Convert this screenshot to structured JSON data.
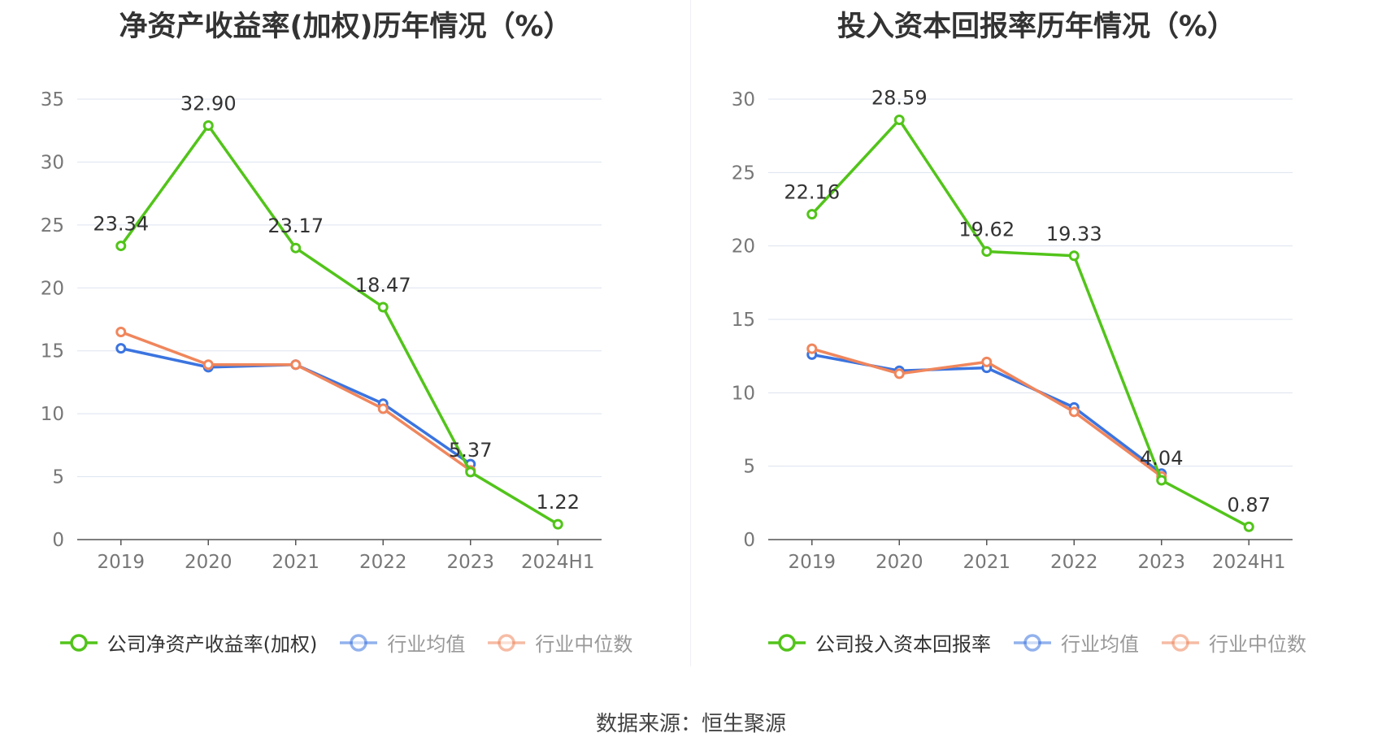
{
  "source_text": "数据来源：恒生聚源",
  "colors": {
    "company": "#52c41a",
    "avg": "#3b74e0",
    "median": "#f0865c",
    "grid": "#dde3ef",
    "axis": "#555555",
    "tick": "#777777"
  },
  "chart_data": [
    {
      "type": "line",
      "title": "净资产收益率(加权)历年情况（%）",
      "categories": [
        "2019",
        "2020",
        "2021",
        "2022",
        "2023",
        "2024H1"
      ],
      "ylim": [
        0,
        35
      ],
      "yticks": [
        0,
        5,
        10,
        15,
        20,
        25,
        30,
        35
      ],
      "legend_position": "bottom",
      "series": [
        {
          "name": "公司净资产收益率(加权)",
          "key": "company",
          "values": [
            23.34,
            32.9,
            23.17,
            18.47,
            5.37,
            1.22
          ],
          "labels": [
            "23.34",
            "32.90",
            "23.17",
            "18.47",
            "5.37",
            "1.22"
          ]
        },
        {
          "name": "行业均值",
          "key": "avg",
          "values": [
            15.2,
            13.7,
            13.9,
            10.8,
            6.0,
            null
          ]
        },
        {
          "name": "行业中位数",
          "key": "median",
          "values": [
            16.5,
            13.9,
            13.9,
            10.4,
            5.5,
            null
          ]
        }
      ]
    },
    {
      "type": "line",
      "title": "投入资本回报率历年情况（%）",
      "categories": [
        "2019",
        "2020",
        "2021",
        "2022",
        "2023",
        "2024H1"
      ],
      "ylim": [
        0,
        30
      ],
      "yticks": [
        0,
        5,
        10,
        15,
        20,
        25,
        30
      ],
      "legend_position": "bottom",
      "series": [
        {
          "name": "公司投入资本回报率",
          "key": "company",
          "values": [
            22.16,
            28.59,
            19.62,
            19.33,
            4.04,
            0.87
          ],
          "labels": [
            "22.16",
            "28.59",
            "19.62",
            "19.33",
            "4.04",
            "0.87"
          ]
        },
        {
          "name": "行业均值",
          "key": "avg",
          "values": [
            12.6,
            11.5,
            11.7,
            9.0,
            4.5,
            null
          ]
        },
        {
          "name": "行业中位数",
          "key": "median",
          "values": [
            13.0,
            11.3,
            12.1,
            8.7,
            4.3,
            null
          ]
        }
      ]
    }
  ]
}
